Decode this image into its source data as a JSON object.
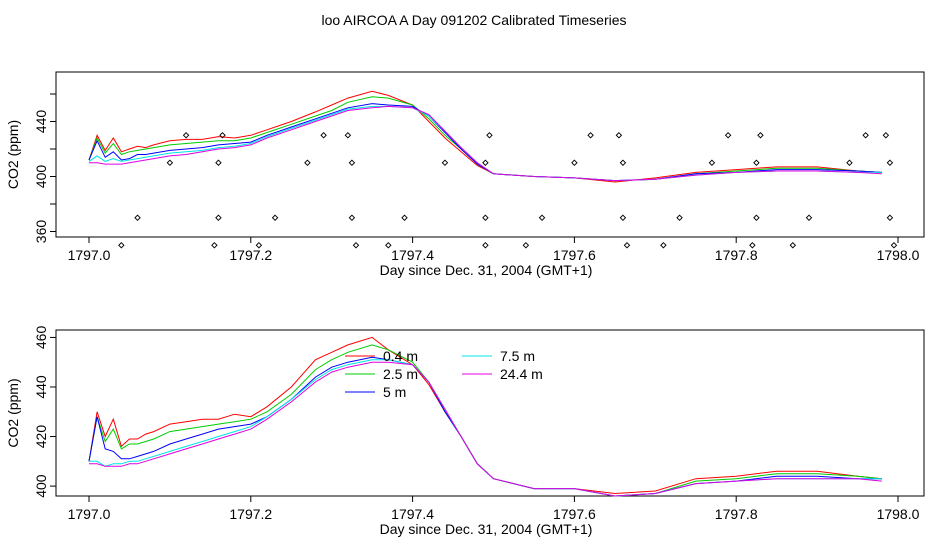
{
  "title": "loo AIRCOA A  Day 091202  Calibrated Timeseries",
  "colors": {
    "0.4 m": "#ff0000",
    "2.5 m": "#00cc00",
    "5 m": "#0000ff",
    "7.5 m": "#00e5e5",
    "24.4 m": "#e000e0"
  },
  "chart_data": [
    {
      "type": "line",
      "xlabel": "Day since Dec. 31, 2004 (GMT+1)",
      "ylabel": "CO2 (ppm)",
      "xlim": [
        1797.0,
        1798.0
      ],
      "xticks": [
        "1797.0",
        "1797.2",
        "1797.4",
        "1797.6",
        "1797.8",
        "1798.0"
      ],
      "ylim": [
        356,
        476
      ],
      "yticks": [
        "360",
        "400",
        "440"
      ],
      "x": [
        1797.0,
        1797.01,
        1797.02,
        1797.03,
        1797.04,
        1797.05,
        1797.06,
        1797.07,
        1797.08,
        1797.1,
        1797.12,
        1797.14,
        1797.16,
        1797.18,
        1797.2,
        1797.22,
        1797.25,
        1797.28,
        1797.3,
        1797.32,
        1797.35,
        1797.37,
        1797.4,
        1797.42,
        1797.44,
        1797.46,
        1797.48,
        1797.5,
        1797.55,
        1797.6,
        1797.65,
        1797.7,
        1797.75,
        1797.8,
        1797.85,
        1797.9,
        1797.95,
        1797.98
      ],
      "series": [
        {
          "name": "0.4 m",
          "values": [
            412,
            430,
            419,
            428,
            418,
            420,
            422,
            421,
            423,
            426,
            427,
            427,
            429,
            428,
            430,
            434,
            440,
            447,
            452,
            457,
            462,
            459,
            452,
            440,
            428,
            418,
            408,
            402,
            400,
            399,
            396,
            399,
            403,
            405,
            407,
            407,
            404,
            403
          ]
        },
        {
          "name": "2.5 m",
          "values": [
            412,
            428,
            417,
            424,
            416,
            418,
            419,
            420,
            421,
            423,
            424,
            425,
            426,
            426,
            428,
            432,
            438,
            444,
            448,
            454,
            458,
            457,
            452,
            442,
            430,
            420,
            409,
            402,
            400,
            399,
            397,
            398,
            402,
            404,
            406,
            406,
            404,
            403
          ]
        },
        {
          "name": "5 m",
          "values": [
            412,
            426,
            414,
            418,
            412,
            413,
            416,
            416,
            417,
            419,
            420,
            421,
            423,
            424,
            425,
            430,
            436,
            442,
            446,
            450,
            453,
            452,
            451,
            444,
            432,
            420,
            409,
            402,
            400,
            399,
            397,
            398,
            402,
            403,
            405,
            405,
            404,
            403
          ]
        },
        {
          "name": "7.5 m",
          "values": [
            411,
            415,
            411,
            413,
            411,
            412,
            413,
            414,
            415,
            417,
            418,
            419,
            421,
            422,
            424,
            429,
            435,
            441,
            445,
            449,
            451,
            451,
            450,
            444,
            433,
            421,
            410,
            402,
            400,
            399,
            397,
            398,
            401,
            403,
            404,
            404,
            403,
            403
          ]
        },
        {
          "name": "24.4 m",
          "values": [
            410,
            410,
            409,
            409,
            409,
            410,
            411,
            412,
            413,
            415,
            416,
            418,
            420,
            421,
            423,
            428,
            434,
            440,
            444,
            448,
            450,
            451,
            450,
            445,
            433,
            421,
            410,
            402,
            400,
            399,
            397,
            398,
            401,
            403,
            404,
            404,
            403,
            402
          ]
        }
      ],
      "scatter": {
        "points": [
          [
            1797.04,
            350
          ],
          [
            1797.06,
            370
          ],
          [
            1797.1,
            410
          ],
          [
            1797.12,
            430
          ],
          [
            1797.155,
            350
          ],
          [
            1797.16,
            370
          ],
          [
            1797.16,
            410
          ],
          [
            1797.165,
            430
          ],
          [
            1797.21,
            350
          ],
          [
            1797.23,
            370
          ],
          [
            1797.27,
            410
          ],
          [
            1797.29,
            430
          ],
          [
            1797.32,
            430
          ],
          [
            1797.325,
            410
          ],
          [
            1797.325,
            370
          ],
          [
            1797.33,
            350
          ],
          [
            1797.37,
            350
          ],
          [
            1797.39,
            370
          ],
          [
            1797.44,
            410
          ],
          [
            1797.49,
            350
          ],
          [
            1797.49,
            370
          ],
          [
            1797.49,
            410
          ],
          [
            1797.495,
            430
          ],
          [
            1797.54,
            350
          ],
          [
            1797.56,
            370
          ],
          [
            1797.6,
            410
          ],
          [
            1797.62,
            430
          ],
          [
            1797.655,
            430
          ],
          [
            1797.66,
            410
          ],
          [
            1797.66,
            370
          ],
          [
            1797.665,
            350
          ],
          [
            1797.71,
            350
          ],
          [
            1797.73,
            370
          ],
          [
            1797.77,
            410
          ],
          [
            1797.79,
            430
          ],
          [
            1797.82,
            350
          ],
          [
            1797.825,
            370
          ],
          [
            1797.825,
            410
          ],
          [
            1797.83,
            430
          ],
          [
            1797.87,
            350
          ],
          [
            1797.89,
            370
          ],
          [
            1797.94,
            410
          ],
          [
            1797.96,
            430
          ],
          [
            1797.985,
            430
          ],
          [
            1797.99,
            410
          ],
          [
            1797.99,
            370
          ],
          [
            1797.995,
            350
          ]
        ]
      },
      "legend": "none"
    },
    {
      "type": "line",
      "xlabel": "Day since Dec. 31, 2004 (GMT+1)",
      "ylabel": "CO2 (ppm)",
      "xlim": [
        1797.0,
        1798.0
      ],
      "xticks": [
        "1797.0",
        "1797.2",
        "1797.4",
        "1797.6",
        "1797.8",
        "1798.0"
      ],
      "ylim": [
        396,
        463
      ],
      "yticks": [
        "400",
        "420",
        "440",
        "460"
      ],
      "legend": "top-center",
      "x": [
        1797.0,
        1797.01,
        1797.02,
        1797.03,
        1797.04,
        1797.05,
        1797.06,
        1797.07,
        1797.08,
        1797.1,
        1797.12,
        1797.14,
        1797.16,
        1797.18,
        1797.2,
        1797.22,
        1797.25,
        1797.28,
        1797.3,
        1797.32,
        1797.35,
        1797.37,
        1797.4,
        1797.42,
        1797.44,
        1797.46,
        1797.48,
        1797.5,
        1797.55,
        1797.6,
        1797.65,
        1797.7,
        1797.75,
        1797.8,
        1797.85,
        1797.9,
        1797.95,
        1797.98
      ],
      "series": [
        {
          "name": "0.4 m",
          "values": [
            410,
            430,
            420,
            427,
            416,
            419,
            419,
            421,
            422,
            425,
            426,
            427,
            427,
            429,
            428,
            432,
            440,
            451,
            454,
            457,
            460,
            455,
            449,
            441,
            430,
            420,
            409,
            403,
            399,
            399,
            397,
            398,
            403,
            404,
            406,
            406,
            404,
            403
          ]
        },
        {
          "name": "2.5 m",
          "values": [
            410,
            428,
            418,
            423,
            415,
            417,
            417,
            418,
            419,
            422,
            423,
            424,
            425,
            426,
            427,
            430,
            437,
            447,
            451,
            454,
            457,
            455,
            450,
            442,
            430,
            420,
            409,
            403,
            399,
            399,
            396,
            397,
            402,
            403,
            405,
            405,
            404,
            403
          ]
        },
        {
          "name": "5 m",
          "values": [
            410,
            428,
            415,
            414,
            411,
            411,
            412,
            413,
            414,
            417,
            419,
            421,
            423,
            424,
            425,
            428,
            435,
            444,
            448,
            450,
            452,
            451,
            449,
            442,
            430,
            420,
            409,
            403,
            399,
            399,
            396,
            397,
            401,
            402,
            404,
            404,
            403,
            403
          ]
        },
        {
          "name": "7.5 m",
          "values": [
            410,
            410,
            408,
            409,
            409,
            410,
            410,
            411,
            412,
            414,
            416,
            418,
            420,
            422,
            424,
            428,
            435,
            443,
            447,
            449,
            451,
            451,
            449,
            442,
            431,
            420,
            409,
            403,
            399,
            399,
            396,
            397,
            401,
            402,
            403,
            403,
            403,
            403
          ]
        },
        {
          "name": "24.4 m",
          "values": [
            409,
            409,
            408,
            408,
            408,
            409,
            409,
            410,
            411,
            413,
            415,
            417,
            419,
            421,
            423,
            427,
            434,
            442,
            446,
            448,
            450,
            450,
            449,
            442,
            431,
            420,
            409,
            403,
            399,
            399,
            396,
            397,
            401,
            402,
            403,
            403,
            403,
            402
          ]
        }
      ]
    }
  ]
}
